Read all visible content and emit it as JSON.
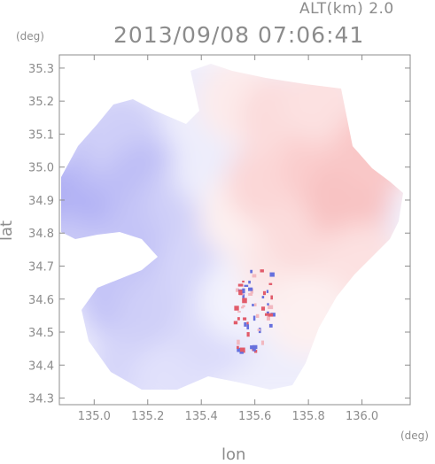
{
  "header": {
    "altitude": "ALT(km) 2.0",
    "timestamp": "2013/09/08 07:06:41"
  },
  "chart_data": {
    "type": "heatmap",
    "title": "2013/09/08 07:06:41",
    "subtitle": "ALT(km) 2.0",
    "xlabel": "lon",
    "ylabel": "lat",
    "x_unit": "(deg)",
    "y_unit": "(deg)",
    "xlim": [
      134.87,
      136.18
    ],
    "ylim": [
      34.28,
      35.34
    ],
    "x_ticks": [
      135.0,
      135.2,
      135.4,
      135.6,
      135.8,
      136.0
    ],
    "x_tick_labels": [
      "135.0",
      "135.2",
      "135.4",
      "135.6",
      "135.8",
      "136.0"
    ],
    "y_ticks": [
      34.3,
      34.4,
      34.5,
      34.6,
      34.7,
      34.8,
      34.9,
      35.0,
      35.1,
      35.2,
      35.3
    ],
    "y_tick_labels": [
      "34.3",
      "34.4",
      "34.5",
      "34.6",
      "34.7",
      "34.8",
      "34.9",
      "35.0",
      "35.1",
      "35.2",
      "35.3"
    ],
    "colormap": {
      "negative": "#8888ee",
      "zero": "#ffffff",
      "positive": "#f49a9a"
    },
    "grid": false,
    "cells": [
      {
        "lon": 134.9,
        "lat": 34.9,
        "v": -0.7
      },
      {
        "lon": 134.95,
        "lat": 34.75,
        "v": -0.45
      },
      {
        "lon": 135.0,
        "lat": 34.95,
        "v": -0.65
      },
      {
        "lon": 135.05,
        "lat": 35.05,
        "v": -0.55
      },
      {
        "lon": 135.1,
        "lat": 35.1,
        "v": -0.4
      },
      {
        "lon": 135.1,
        "lat": 34.6,
        "v": -0.5
      },
      {
        "lon": 135.15,
        "lat": 34.4,
        "v": -0.35
      },
      {
        "lon": 135.2,
        "lat": 34.95,
        "v": -0.55
      },
      {
        "lon": 135.2,
        "lat": 34.8,
        "v": -0.5
      },
      {
        "lon": 135.25,
        "lat": 34.55,
        "v": -0.4
      },
      {
        "lon": 135.3,
        "lat": 34.35,
        "v": -0.25
      },
      {
        "lon": 135.35,
        "lat": 34.9,
        "v": -0.4
      },
      {
        "lon": 135.4,
        "lat": 34.7,
        "v": -0.35
      },
      {
        "lon": 135.45,
        "lat": 34.5,
        "v": -0.3
      },
      {
        "lon": 135.45,
        "lat": 35.0,
        "v": -0.15
      },
      {
        "lon": 135.55,
        "lat": 34.6,
        "v": -0.1
      },
      {
        "lon": 135.55,
        "lat": 34.85,
        "v": 0.15
      },
      {
        "lon": 135.55,
        "lat": 35.2,
        "v": 0.2
      },
      {
        "lon": 135.65,
        "lat": 34.95,
        "v": 0.4
      },
      {
        "lon": 135.7,
        "lat": 35.15,
        "v": 0.35
      },
      {
        "lon": 135.7,
        "lat": 34.7,
        "v": 0.25
      },
      {
        "lon": 135.8,
        "lat": 34.8,
        "v": 0.35
      },
      {
        "lon": 135.85,
        "lat": 35.0,
        "v": 0.5
      },
      {
        "lon": 135.85,
        "lat": 35.2,
        "v": 0.3
      },
      {
        "lon": 135.95,
        "lat": 34.9,
        "v": 0.6
      },
      {
        "lon": 136.0,
        "lat": 34.7,
        "v": 0.3
      },
      {
        "lon": 136.05,
        "lat": 35.05,
        "v": 0.55
      },
      {
        "lon": 135.8,
        "lat": 34.55,
        "v": 0.15
      }
    ]
  }
}
